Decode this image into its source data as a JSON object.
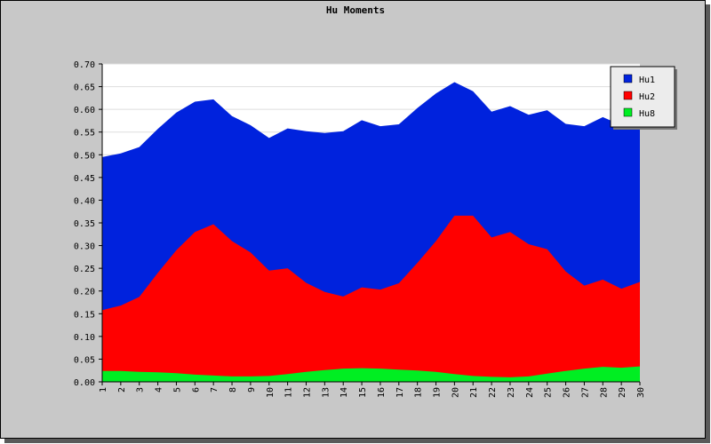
{
  "chart_data": {
    "type": "area",
    "title": "Hu Moments",
    "xlabel": "",
    "ylabel": "",
    "x": [
      1,
      2,
      3,
      4,
      5,
      6,
      7,
      8,
      9,
      10,
      11,
      12,
      13,
      14,
      15,
      16,
      17,
      18,
      19,
      20,
      21,
      22,
      23,
      24,
      25,
      26,
      27,
      28,
      29,
      30
    ],
    "ylim": [
      0,
      0.7
    ],
    "yticks": [
      "0.00",
      "0.05",
      "0.10",
      "0.15",
      "0.20",
      "0.25",
      "0.30",
      "0.35",
      "0.40",
      "0.45",
      "0.50",
      "0.55",
      "0.60",
      "0.65",
      "0.70"
    ],
    "grid": true,
    "legend_position": "top-right",
    "series": [
      {
        "name": "Hu1",
        "color": "#0022dd",
        "values": [
          0.495,
          0.503,
          0.517,
          0.557,
          0.593,
          0.617,
          0.622,
          0.585,
          0.565,
          0.537,
          0.558,
          0.552,
          0.548,
          0.552,
          0.576,
          0.563,
          0.567,
          0.603,
          0.635,
          0.66,
          0.64,
          0.595,
          0.607,
          0.588,
          0.598,
          0.568,
          0.563,
          0.583,
          0.565,
          0.555
        ]
      },
      {
        "name": "Hu2",
        "color": "#ff0000",
        "values": [
          0.158,
          0.168,
          0.187,
          0.24,
          0.29,
          0.33,
          0.347,
          0.31,
          0.285,
          0.245,
          0.25,
          0.218,
          0.198,
          0.188,
          0.208,
          0.203,
          0.217,
          0.262,
          0.31,
          0.366,
          0.366,
          0.318,
          0.33,
          0.303,
          0.292,
          0.243,
          0.212,
          0.225,
          0.205,
          0.22
        ]
      },
      {
        "name": "Hu8",
        "color": "#00ee22",
        "values": [
          0.024,
          0.024,
          0.022,
          0.021,
          0.019,
          0.016,
          0.014,
          0.012,
          0.012,
          0.013,
          0.017,
          0.022,
          0.026,
          0.029,
          0.03,
          0.029,
          0.027,
          0.025,
          0.022,
          0.017,
          0.013,
          0.011,
          0.01,
          0.012,
          0.018,
          0.024,
          0.029,
          0.033,
          0.031,
          0.034
        ]
      }
    ]
  }
}
